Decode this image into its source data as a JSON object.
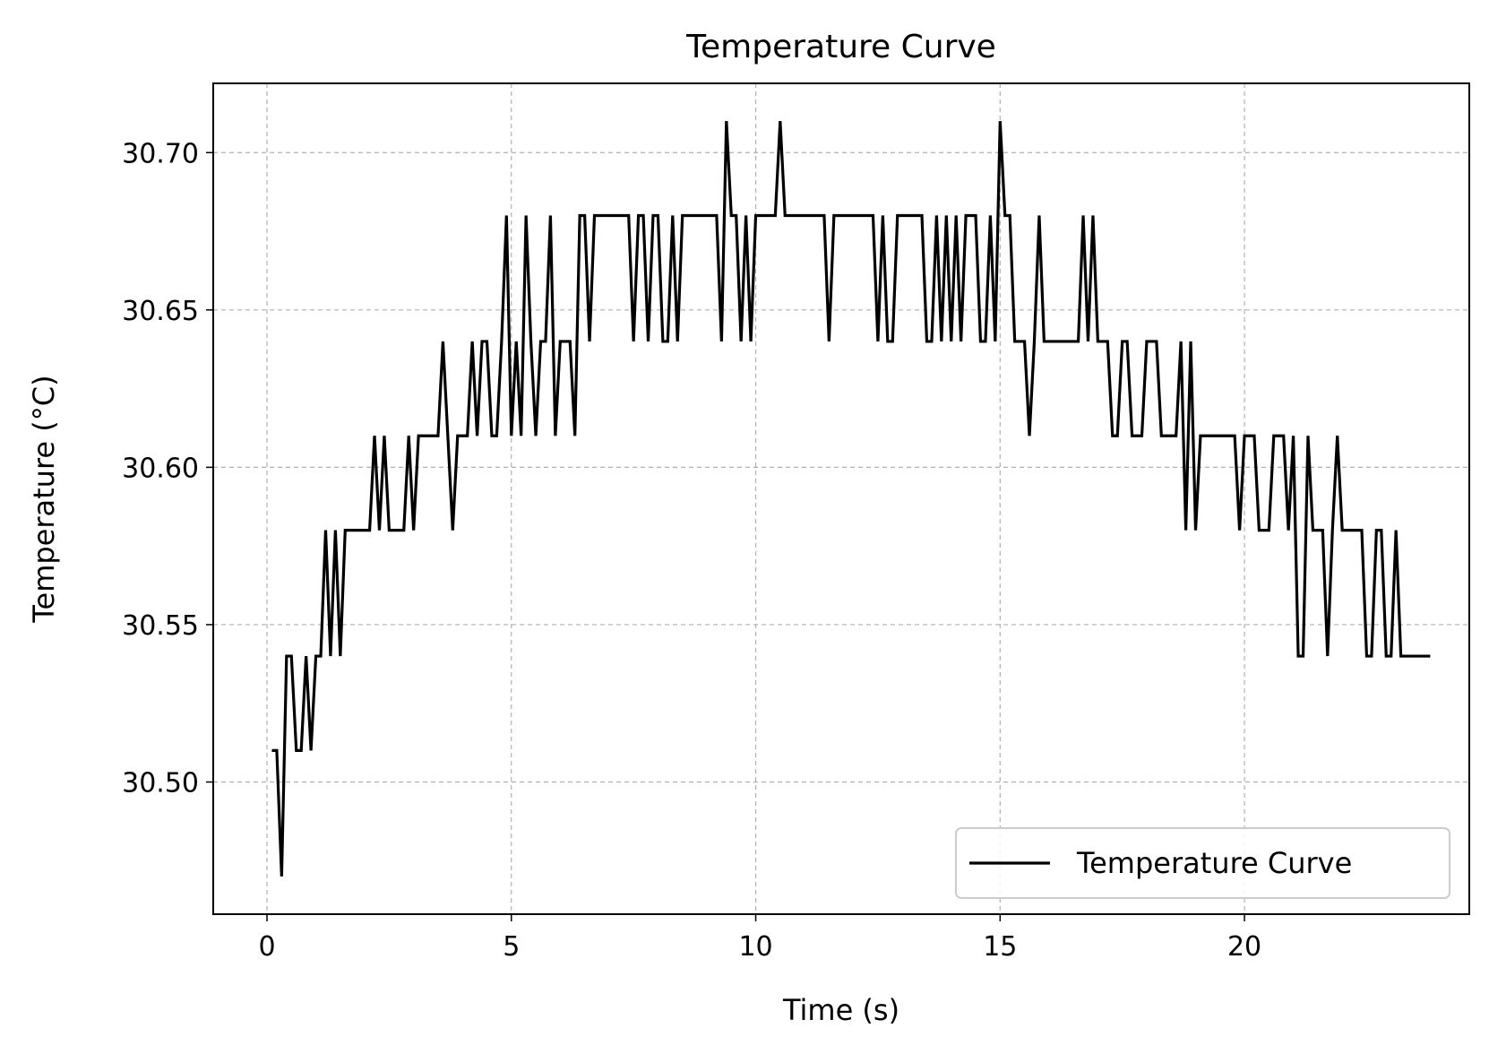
{
  "chart_data": {
    "type": "line",
    "title": "Temperature Curve",
    "xlabel": "Time (s)",
    "ylabel": "Temperature (°C)",
    "xlim": [
      -1.1,
      24.6
    ],
    "ylim": [
      30.458,
      30.722
    ],
    "xticks": [
      0,
      5,
      10,
      15,
      20
    ],
    "xtick_labels": [
      "0",
      "5",
      "10",
      "15",
      "20"
    ],
    "yticks": [
      30.5,
      30.55,
      30.6,
      30.65,
      30.7
    ],
    "ytick_labels": [
      "30.50",
      "30.55",
      "30.60",
      "30.65",
      "30.70"
    ],
    "grid": true,
    "legend_position": "bottom-right",
    "colors": {
      "line": "#000000",
      "grid": "#b0b0b0",
      "axes": "#000000"
    },
    "series": [
      {
        "name": "Temperature Curve",
        "x_start": 0.1,
        "x_step": 0.1,
        "values": [
          30.51,
          30.51,
          30.47,
          30.54,
          30.54,
          30.51,
          30.51,
          30.54,
          30.51,
          30.54,
          30.54,
          30.58,
          30.54,
          30.58,
          30.54,
          30.58,
          30.58,
          30.58,
          30.58,
          30.58,
          30.58,
          30.61,
          30.58,
          30.61,
          30.58,
          30.58,
          30.58,
          30.58,
          30.61,
          30.58,
          30.61,
          30.61,
          30.61,
          30.61,
          30.61,
          30.64,
          30.61,
          30.58,
          30.61,
          30.61,
          30.61,
          30.64,
          30.61,
          30.64,
          30.64,
          30.61,
          30.61,
          30.64,
          30.68,
          30.61,
          30.64,
          30.61,
          30.68,
          30.64,
          30.61,
          30.64,
          30.64,
          30.68,
          30.61,
          30.64,
          30.64,
          30.64,
          30.61,
          30.68,
          30.68,
          30.64,
          30.68,
          30.68,
          30.68,
          30.68,
          30.68,
          30.68,
          30.68,
          30.68,
          30.64,
          30.68,
          30.68,
          30.64,
          30.68,
          30.68,
          30.64,
          30.64,
          30.68,
          30.64,
          30.68,
          30.68,
          30.68,
          30.68,
          30.68,
          30.68,
          30.68,
          30.68,
          30.64,
          30.71,
          30.68,
          30.68,
          30.64,
          30.68,
          30.64,
          30.68,
          30.68,
          30.68,
          30.68,
          30.68,
          30.71,
          30.68,
          30.68,
          30.68,
          30.68,
          30.68,
          30.68,
          30.68,
          30.68,
          30.68,
          30.64,
          30.68,
          30.68,
          30.68,
          30.68,
          30.68,
          30.68,
          30.68,
          30.68,
          30.68,
          30.64,
          30.68,
          30.64,
          30.64,
          30.68,
          30.68,
          30.68,
          30.68,
          30.68,
          30.68,
          30.64,
          30.64,
          30.68,
          30.64,
          30.68,
          30.64,
          30.68,
          30.64,
          30.68,
          30.68,
          30.68,
          30.64,
          30.64,
          30.68,
          30.64,
          30.71,
          30.68,
          30.68,
          30.64,
          30.64,
          30.64,
          30.61,
          30.64,
          30.68,
          30.64,
          30.64,
          30.64,
          30.64,
          30.64,
          30.64,
          30.64,
          30.64,
          30.68,
          30.64,
          30.68,
          30.64,
          30.64,
          30.64,
          30.61,
          30.61,
          30.64,
          30.64,
          30.61,
          30.61,
          30.61,
          30.64,
          30.64,
          30.64,
          30.61,
          30.61,
          30.61,
          30.61,
          30.64,
          30.58,
          30.64,
          30.58,
          30.61,
          30.61,
          30.61,
          30.61,
          30.61,
          30.61,
          30.61,
          30.61,
          30.58,
          30.61,
          30.61,
          30.61,
          30.58,
          30.58,
          30.58,
          30.61,
          30.61,
          30.61,
          30.58,
          30.61,
          30.54,
          30.54,
          30.61,
          30.58,
          30.58,
          30.58,
          30.54,
          30.58,
          30.61,
          30.58,
          30.58,
          30.58,
          30.58,
          30.58,
          30.54,
          30.54,
          30.58,
          30.58,
          30.54,
          30.54,
          30.58,
          30.54,
          30.54,
          30.54,
          30.54,
          30.54,
          30.54,
          30.54
        ]
      }
    ]
  }
}
